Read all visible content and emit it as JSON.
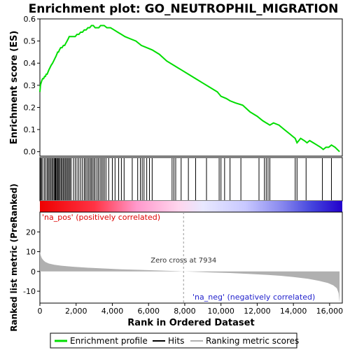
{
  "chart_data": {
    "type": "line",
    "title": "Enrichment plot: GO_NEUTROPHIL_MIGRATION",
    "xlabel": "Rank in Ordered Dataset",
    "ylabel_top": "Enrichment score (ES)",
    "ylabel_bottom": "Ranked list metric (PreRanked)",
    "xlim": [
      0,
      16700
    ],
    "es_ylim": [
      -0.02,
      0.6
    ],
    "metric_ylim": [
      -16,
      30
    ],
    "x_ticks": [
      0,
      2000,
      4000,
      6000,
      8000,
      10000,
      12000,
      14000,
      16000
    ],
    "x_tick_labels": [
      "0",
      "2,000",
      "4,000",
      "6,000",
      "8,000",
      "10,000",
      "12,000",
      "14,000",
      "16,000"
    ],
    "es_ticks": [
      0.0,
      0.1,
      0.2,
      0.3,
      0.4,
      0.5,
      0.6
    ],
    "es_tick_labels": [
      "0.0",
      "0.1",
      "0.2",
      "0.3",
      "0.4",
      "0.5",
      "0.6"
    ],
    "metric_ticks": [
      -10,
      0,
      10,
      20
    ],
    "metric_tick_labels": [
      "-10",
      "0",
      "10",
      "20"
    ],
    "es_series": {
      "name": "Enrichment profile",
      "color": "#00dd00",
      "x": [
        0,
        30,
        60,
        100,
        150,
        200,
        260,
        300,
        350,
        400,
        450,
        500,
        560,
        620,
        700,
        760,
        820,
        880,
        930,
        980,
        1030,
        1080,
        1150,
        1220,
        1300,
        1370,
        1430,
        1500,
        1560,
        1620,
        1700,
        1780,
        1850,
        1950,
        2050,
        2150,
        2250,
        2350,
        2450,
        2550,
        2650,
        2750,
        2850,
        2950,
        3050,
        3150,
        3250,
        3350,
        3450,
        3550,
        3700,
        3900,
        4100,
        4300,
        4500,
        4700,
        5000,
        5300,
        5600,
        5900,
        6200,
        6600,
        7000,
        7400,
        7800,
        8200,
        8600,
        9000,
        9400,
        9800,
        10000,
        10300,
        10500,
        10800,
        11200,
        11600,
        12000,
        12300,
        12500,
        12700,
        12900,
        13200,
        13500,
        13800,
        14100,
        14200,
        14400,
        14600,
        14750,
        14900,
        15100,
        15300,
        15500,
        15650,
        15800,
        15950,
        16100,
        16300,
        16550
      ],
      "y": [
        0.27,
        0.3,
        0.31,
        0.32,
        0.33,
        0.33,
        0.34,
        0.34,
        0.35,
        0.35,
        0.36,
        0.37,
        0.38,
        0.39,
        0.4,
        0.41,
        0.42,
        0.43,
        0.44,
        0.45,
        0.45,
        0.46,
        0.47,
        0.47,
        0.48,
        0.48,
        0.49,
        0.5,
        0.51,
        0.52,
        0.52,
        0.52,
        0.52,
        0.52,
        0.53,
        0.53,
        0.54,
        0.54,
        0.55,
        0.55,
        0.56,
        0.56,
        0.57,
        0.57,
        0.56,
        0.56,
        0.56,
        0.57,
        0.57,
        0.57,
        0.56,
        0.56,
        0.55,
        0.54,
        0.53,
        0.52,
        0.51,
        0.5,
        0.48,
        0.47,
        0.46,
        0.44,
        0.41,
        0.39,
        0.37,
        0.35,
        0.33,
        0.31,
        0.29,
        0.27,
        0.25,
        0.24,
        0.23,
        0.22,
        0.21,
        0.18,
        0.16,
        0.14,
        0.13,
        0.12,
        0.13,
        0.12,
        0.1,
        0.08,
        0.06,
        0.04,
        0.06,
        0.05,
        0.04,
        0.05,
        0.04,
        0.03,
        0.02,
        0.01,
        0.02,
        0.02,
        0.03,
        0.02,
        0.0
      ]
    },
    "hits": [
      40,
      90,
      160,
      250,
      330,
      410,
      470,
      530,
      600,
      660,
      720,
      780,
      830,
      870,
      920,
      970,
      1010,
      1060,
      1120,
      1180,
      1240,
      1300,
      1360,
      1420,
      1480,
      1540,
      1600,
      1660,
      1720,
      1850,
      1950,
      2050,
      2150,
      2250,
      2350,
      2450,
      2520,
      2600,
      2680,
      2760,
      2830,
      2900,
      2980,
      3050,
      3150,
      3230,
      3320,
      3400,
      3480,
      3560,
      3650,
      3800,
      4000,
      4150,
      4350,
      4500,
      4650,
      5100,
      5400,
      5550,
      5650,
      5750,
      5900,
      6050,
      6200,
      7300,
      7400,
      7500,
      7800,
      8200,
      8600,
      9200,
      9900,
      10000,
      10200,
      10500,
      11100,
      12100,
      12400,
      12500,
      12600,
      12700,
      14100,
      14200,
      14700,
      15600,
      16100
    ],
    "metric_series": {
      "name": "Ranking metric scores",
      "color": "#b0b0b0",
      "x": [
        0,
        50,
        100,
        200,
        300,
        500,
        800,
        1200,
        1800,
        2600,
        3500,
        4500,
        5500,
        6500,
        7500,
        7934,
        8500,
        9500,
        10500,
        11500,
        12500,
        13300,
        14000,
        14800,
        15400,
        15900,
        16200,
        16400,
        16500,
        16550
      ],
      "y": [
        10,
        8,
        6.8,
        5.6,
        4.8,
        4.0,
        3.4,
        2.9,
        2.4,
        1.9,
        1.5,
        1.1,
        0.8,
        0.5,
        0.2,
        0.0,
        -0.2,
        -0.5,
        -0.8,
        -1.2,
        -1.7,
        -2.2,
        -2.8,
        -3.7,
        -4.7,
        -5.8,
        -7.0,
        -8.5,
        -11,
        -16
      ]
    },
    "zero_cross_label": "Zero cross at 7934",
    "zero_cross_x": 7934,
    "pos_label": "'na_pos' (positively correlated)",
    "neg_label": "'na_neg' (negatively correlated)",
    "legend": [
      {
        "label": "Enrichment profile",
        "color": "#00dd00"
      },
      {
        "label": "Hits",
        "color": "#000000"
      },
      {
        "label": "Ranking metric scores",
        "color": "#b0b0b0"
      }
    ],
    "legend_position": "bottom",
    "grid": false
  }
}
